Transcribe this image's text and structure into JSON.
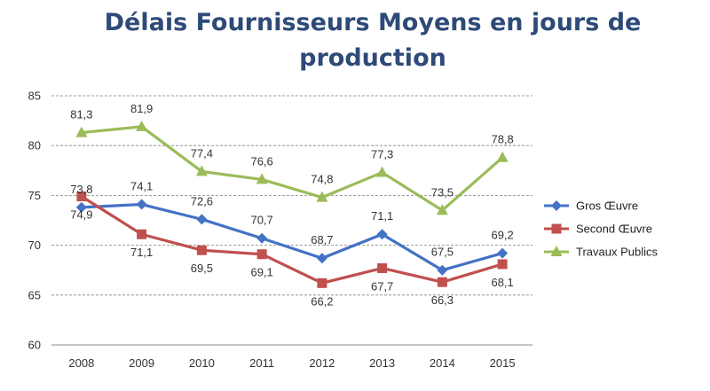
{
  "chart_data": {
    "type": "line",
    "title": "Délais Fournisseurs Moyens en jours de production",
    "categories": [
      "2008",
      "2009",
      "2010",
      "2011",
      "2012",
      "2013",
      "2014",
      "2015"
    ],
    "yticks": [
      "60",
      "65",
      "70",
      "75",
      "80",
      "85"
    ],
    "ylim": [
      60,
      85
    ],
    "grid": "horizontal-dashed",
    "legend_position": "right",
    "series": [
      {
        "name": "Gros Œuvre",
        "color": "#4472c4",
        "marker": "diamond",
        "values": [
          73.8,
          74.1,
          72.6,
          70.7,
          68.7,
          71.1,
          67.5,
          69.2
        ],
        "labels": [
          "73,8",
          "74,1",
          "72,6",
          "70,7",
          "68,7",
          "71,1",
          "67,5",
          "69,2"
        ]
      },
      {
        "name": "Second Œuvre",
        "color": "#c0504d",
        "marker": "square",
        "values": [
          74.9,
          71.1,
          69.5,
          69.1,
          66.2,
          67.7,
          66.3,
          68.1
        ],
        "labels": [
          "74,9",
          "71,1",
          "69,5",
          "69,1",
          "66,2",
          "67,7",
          "66,3",
          "68,1"
        ]
      },
      {
        "name": "Travaux Publics",
        "color": "#9bbb59",
        "marker": "triangle",
        "values": [
          81.3,
          81.9,
          77.4,
          76.6,
          74.8,
          77.3,
          73.5,
          78.8
        ],
        "labels": [
          "81,3",
          "81,9",
          "77,4",
          "76,6",
          "74,8",
          "77,3",
          "73,5",
          "78,8"
        ]
      }
    ]
  }
}
